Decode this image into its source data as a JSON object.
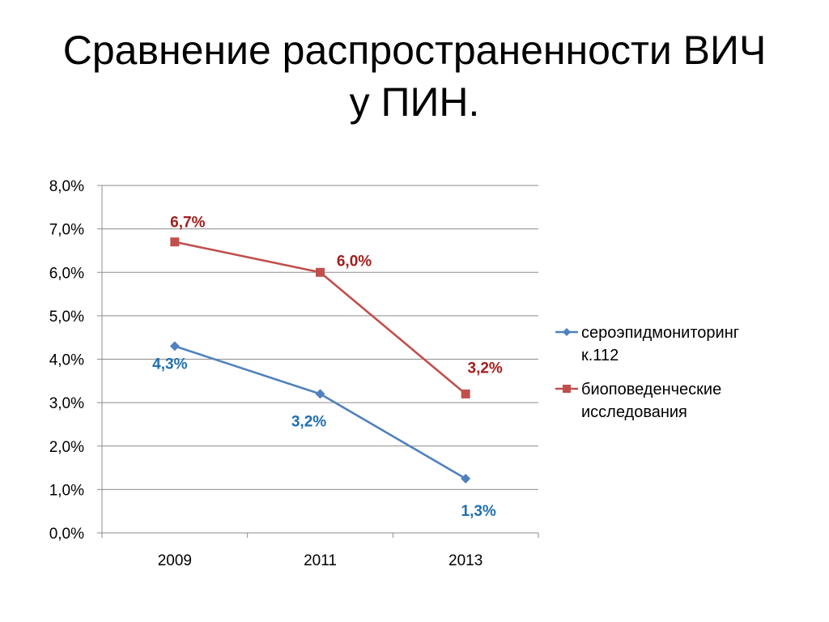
{
  "slide": {
    "title_line1": "Сравнение распространенности ВИЧ",
    "title_line2": "у  ПИН."
  },
  "chart_data": {
    "type": "line",
    "title": "",
    "xlabel": "",
    "ylabel": "",
    "categories": [
      "2009",
      "2011",
      "2013"
    ],
    "ylim": [
      0,
      8
    ],
    "y_ticks": [
      "0,0%",
      "1,0%",
      "2,0%",
      "3,0%",
      "4,0%",
      "5,0%",
      "6,0%",
      "7,0%",
      "8,0%"
    ],
    "grid": "horizontal",
    "legend_position": "right",
    "series": [
      {
        "name": "сероэпидмониторинг к.112",
        "legend_lines": [
          "сероэпидмониторинг",
          "к.112"
        ],
        "values": [
          4.3,
          3.2,
          1.25
        ],
        "labels": [
          "4,3%",
          "3,2%",
          "1,3%"
        ],
        "color": "#4F81BD",
        "label_color": "#1F6FAF",
        "marker": "diamond"
      },
      {
        "name": "биоповеденческие исследования",
        "legend_lines": [
          "биоповеденческие",
          "исследования"
        ],
        "values": [
          6.7,
          6.0,
          3.2
        ],
        "labels": [
          "6,7%",
          "6,0%",
          "3,2%"
        ],
        "color": "#C0504D",
        "label_color": "#A31D1D",
        "marker": "square"
      }
    ]
  }
}
